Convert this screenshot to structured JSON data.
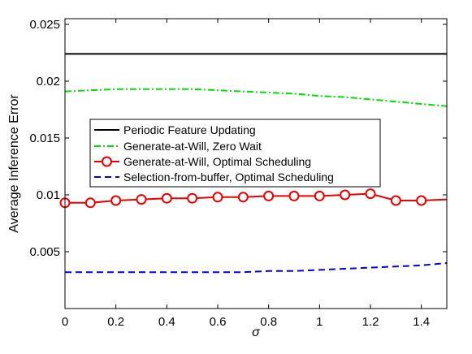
{
  "chart_data": {
    "type": "line",
    "xlabel": "σ",
    "ylabel": "Average Inference Error",
    "xlim": [
      0,
      1.5
    ],
    "ylim": [
      0,
      0.0255
    ],
    "x_ticks": [
      "0",
      "0.2",
      "0.4",
      "0.6",
      "0.8",
      "1",
      "1.2",
      "1.4"
    ],
    "y_ticks": [
      "0.005",
      "0.01",
      "0.015",
      "0.02",
      "0.025"
    ],
    "grid": false,
    "legend_position": "center-left",
    "series": [
      {
        "name": "Periodic Feature Updating",
        "color": "#000000",
        "line_style": "solid",
        "marker": "none",
        "x": [
          0,
          1.5
        ],
        "y": [
          0.0224,
          0.0224
        ]
      },
      {
        "name": "Generate-at-Will, Zero Wait",
        "color": "#00e000",
        "line_style": "dashdot",
        "marker": "none",
        "x": [
          0,
          0.1,
          0.2,
          0.3,
          0.4,
          0.5,
          0.6,
          0.7,
          0.8,
          0.9,
          1.0,
          1.1,
          1.2,
          1.3,
          1.4,
          1.5
        ],
        "y": [
          0.0191,
          0.0192,
          0.0193,
          0.0193,
          0.0193,
          0.0193,
          0.0192,
          0.0191,
          0.019,
          0.0189,
          0.0187,
          0.0186,
          0.0184,
          0.0182,
          0.018,
          0.0178
        ]
      },
      {
        "name": "Generate-at-Will, Optimal Scheduling",
        "color": "#ee0000",
        "line_style": "solid",
        "marker": "circle",
        "x": [
          0,
          0.1,
          0.2,
          0.3,
          0.4,
          0.5,
          0.6,
          0.7,
          0.8,
          0.9,
          1.0,
          1.1,
          1.2,
          1.3,
          1.4
        ],
        "y": [
          0.0093,
          0.0093,
          0.0095,
          0.0096,
          0.0097,
          0.0097,
          0.0098,
          0.0098,
          0.0099,
          0.0099,
          0.0099,
          0.01,
          0.0101,
          0.0095,
          0.0095
        ],
        "line_extends_to": 1.5,
        "line_end_value": 0.0096
      },
      {
        "name": "Selection-from-buffer, Optimal Scheduling",
        "color": "#0000ee",
        "line_style": "dashed",
        "marker": "none",
        "x": [
          0,
          0.1,
          0.2,
          0.3,
          0.4,
          0.5,
          0.6,
          0.7,
          0.8,
          0.9,
          1.0,
          1.1,
          1.2,
          1.3,
          1.4,
          1.5
        ],
        "y": [
          0.0032,
          0.0032,
          0.0032,
          0.0032,
          0.0032,
          0.0032,
          0.0032,
          0.0032,
          0.0033,
          0.0033,
          0.0034,
          0.0035,
          0.0036,
          0.0037,
          0.0038,
          0.004
        ]
      }
    ]
  }
}
